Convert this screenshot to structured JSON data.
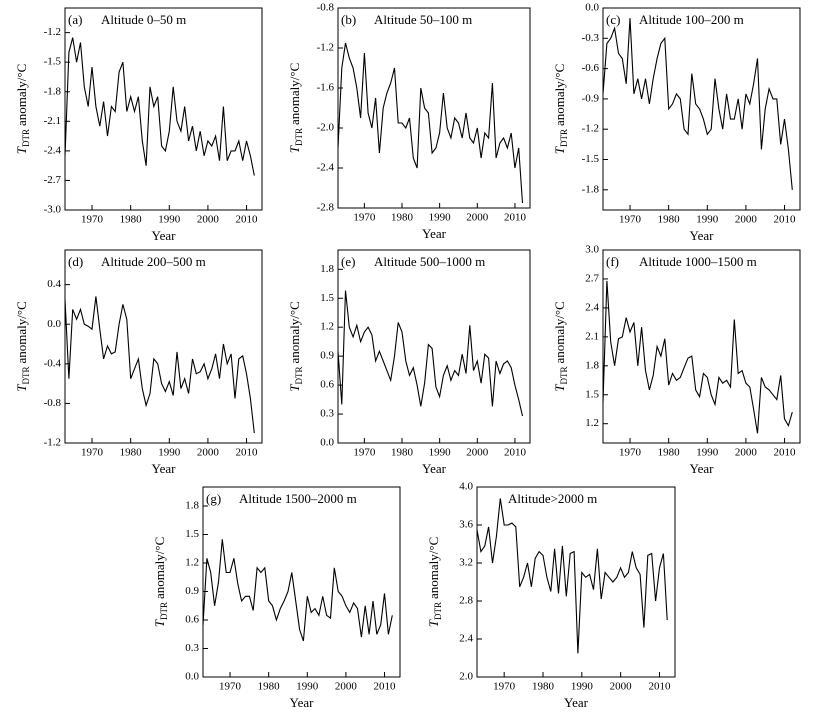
{
  "chart_data": [
    {
      "type": "line",
      "label": "(a)",
      "title": "Altitude 0–50 m",
      "x_label": "Year",
      "y_label": {
        "symbol": "T",
        "subscript": "DTR",
        "unit": "anomaly/°C"
      },
      "color": "#000000",
      "x": [
        1963,
        1964,
        1965,
        1966,
        1967,
        1968,
        1969,
        1970,
        1971,
        1972,
        1973,
        1974,
        1975,
        1976,
        1977,
        1978,
        1979,
        1980,
        1981,
        1982,
        1983,
        1984,
        1985,
        1986,
        1987,
        1988,
        1989,
        1990,
        1991,
        1992,
        1993,
        1994,
        1995,
        1996,
        1997,
        1998,
        1999,
        2000,
        2001,
        2002,
        2003,
        2004,
        2005,
        2006,
        2007,
        2008,
        2009,
        2010,
        2011,
        2012
      ],
      "values": [
        -2.45,
        -1.4,
        -1.25,
        -1.5,
        -1.3,
        -1.75,
        -1.95,
        -1.55,
        -1.95,
        -2.15,
        -1.9,
        -2.25,
        -1.95,
        -2.0,
        -1.6,
        -1.5,
        -2.0,
        -1.85,
        -2.0,
        -1.85,
        -2.3,
        -2.55,
        -1.75,
        -1.95,
        -1.85,
        -2.35,
        -2.4,
        -2.2,
        -1.75,
        -2.1,
        -2.2,
        -1.95,
        -2.3,
        -2.15,
        -2.4,
        -2.2,
        -2.45,
        -2.3,
        -2.35,
        -2.25,
        -2.5,
        -1.95,
        -2.5,
        -2.4,
        -2.4,
        -2.3,
        -2.5,
        -2.3,
        -2.45,
        -2.65
      ],
      "xlim": [
        1963,
        2014
      ],
      "xticks": [
        1970,
        1980,
        1990,
        2000,
        2010
      ],
      "ylim": [
        -3.0,
        -0.95
      ],
      "yticks": [
        -1.2,
        -1.5,
        -1.8,
        -2.1,
        -2.4,
        -2.7,
        {
          "value": -3,
          "label": "-3.0"
        }
      ]
    },
    {
      "type": "line",
      "label": "(b)",
      "title": "Altitude 50–100 m",
      "x_label": "Year",
      "y_label": {
        "symbol": "T",
        "subscript": "DTR",
        "unit": "anomaly/°C"
      },
      "color": "#000000",
      "x": [
        1963,
        1964,
        1965,
        1966,
        1967,
        1968,
        1969,
        1970,
        1971,
        1972,
        1973,
        1974,
        1975,
        1976,
        1977,
        1978,
        1979,
        1980,
        1981,
        1982,
        1983,
        1984,
        1985,
        1986,
        1987,
        1988,
        1989,
        1990,
        1991,
        1992,
        1993,
        1994,
        1995,
        1996,
        1997,
        1998,
        1999,
        2000,
        2001,
        2002,
        2003,
        2004,
        2005,
        2006,
        2007,
        2008,
        2009,
        2010,
        2011,
        2012
      ],
      "values": [
        -2.2,
        -1.4,
        -1.15,
        -1.3,
        -1.4,
        -1.6,
        -1.9,
        -1.25,
        -1.85,
        -2.0,
        -1.7,
        -2.25,
        -1.8,
        -1.65,
        -1.55,
        -1.4,
        -1.95,
        -1.95,
        -2.0,
        -1.9,
        -2.3,
        -2.4,
        -1.6,
        -1.8,
        -1.85,
        -2.25,
        -2.2,
        -2.05,
        -1.65,
        -2.0,
        -2.1,
        -1.9,
        -1.95,
        -2.1,
        -1.85,
        -2.1,
        -2.15,
        -2.0,
        -2.3,
        -2.05,
        -2.1,
        -1.55,
        -2.3,
        -2.15,
        -2.1,
        -2.2,
        -2.05,
        -2.4,
        -2.2,
        -2.75
      ],
      "xlim": [
        1963,
        2014
      ],
      "xticks": [
        1970,
        1980,
        1990,
        2000,
        2010
      ],
      "ylim": [
        -2.8,
        -0.8
      ],
      "yticks": [
        -0.8,
        -1.2,
        -1.6,
        {
          "value": -2,
          "label": "-2.0"
        },
        -2.4,
        -2.8
      ]
    },
    {
      "type": "line",
      "label": "(c)",
      "title": "Altitude 100–200 m",
      "x_label": "Year",
      "y_label": {
        "symbol": "T",
        "subscript": "DTR",
        "unit": "anomaly/°C"
      },
      "color": "#000000",
      "x": [
        1963,
        1964,
        1965,
        1966,
        1967,
        1968,
        1969,
        1970,
        1971,
        1972,
        1973,
        1974,
        1975,
        1976,
        1977,
        1978,
        1979,
        1980,
        1981,
        1982,
        1983,
        1984,
        1985,
        1986,
        1987,
        1988,
        1989,
        1990,
        1991,
        1992,
        1993,
        1994,
        1995,
        1996,
        1997,
        1998,
        1999,
        2000,
        2001,
        2002,
        2003,
        2004,
        2005,
        2006,
        2007,
        2008,
        2009,
        2010,
        2011,
        2012
      ],
      "values": [
        -0.85,
        -0.35,
        -0.3,
        -0.2,
        -0.45,
        -0.5,
        -0.75,
        -0.1,
        -0.85,
        -0.7,
        -0.9,
        -0.7,
        -0.95,
        -0.7,
        -0.5,
        -0.35,
        -0.3,
        -1.0,
        -0.95,
        -0.85,
        -0.9,
        -1.2,
        -1.25,
        -0.65,
        -0.95,
        -1.0,
        -1.1,
        -1.25,
        -1.2,
        -0.7,
        -1.0,
        -1.2,
        -0.85,
        -1.1,
        -1.1,
        -0.9,
        -1.2,
        -0.85,
        -0.95,
        -0.75,
        -0.5,
        -1.4,
        -1.0,
        -0.8,
        -0.9,
        -0.9,
        -1.35,
        -1.1,
        -1.4,
        -1.8
      ],
      "xlim": [
        1963,
        2014
      ],
      "xticks": [
        1970,
        1980,
        1990,
        2000,
        2010
      ],
      "ylim": [
        -2.0,
        0.0
      ],
      "yticks": [
        {
          "value": 0,
          "label": "0.0"
        },
        -0.3,
        -0.6,
        -0.9,
        -1.2,
        -1.5,
        -1.8
      ]
    },
    {
      "type": "line",
      "label": "(d)",
      "title": "Altitude 200–500 m",
      "x_label": "Year",
      "y_label": {
        "symbol": "T",
        "subscript": "DTR",
        "unit": "anomaly/°C"
      },
      "color": "#000000",
      "x": [
        1963,
        1964,
        1965,
        1966,
        1967,
        1968,
        1969,
        1970,
        1971,
        1972,
        1973,
        1974,
        1975,
        1976,
        1977,
        1978,
        1979,
        1980,
        1981,
        1982,
        1983,
        1984,
        1985,
        1986,
        1987,
        1988,
        1989,
        1990,
        1991,
        1992,
        1993,
        1994,
        1995,
        1996,
        1997,
        1998,
        1999,
        2000,
        2001,
        2002,
        2003,
        2004,
        2005,
        2006,
        2007,
        2008,
        2009,
        2010,
        2011,
        2012
      ],
      "values": [
        0.25,
        -0.55,
        0.15,
        0.05,
        0.15,
        0.0,
        -0.02,
        -0.05,
        0.28,
        -0.05,
        -0.35,
        -0.22,
        -0.3,
        -0.28,
        0.0,
        0.2,
        0.05,
        -0.55,
        -0.45,
        -0.35,
        -0.65,
        -0.82,
        -0.7,
        -0.35,
        -0.4,
        -0.6,
        -0.68,
        -0.58,
        -0.72,
        -0.28,
        -0.65,
        -0.55,
        -0.7,
        -0.35,
        -0.5,
        -0.48,
        -0.4,
        -0.55,
        -0.45,
        -0.3,
        -0.55,
        -0.2,
        -0.4,
        -0.3,
        -0.75,
        -0.35,
        -0.32,
        -0.5,
        -0.75,
        -1.1
      ],
      "xlim": [
        1963,
        2014
      ],
      "xticks": [
        1970,
        1980,
        1990,
        2000,
        2010
      ],
      "ylim": [
        -1.2,
        0.75
      ],
      "yticks": [
        0.4,
        {
          "value": 0,
          "label": "0.0"
        },
        -0.4,
        -0.8,
        -1.2
      ]
    },
    {
      "type": "line",
      "label": "(e)",
      "title": "Altitude 500–1000 m",
      "x_label": "Year",
      "y_label": {
        "symbol": "T",
        "subscript": "DTR",
        "unit": "anomaly/°C"
      },
      "color": "#000000",
      "x": [
        1963,
        1964,
        1965,
        1966,
        1967,
        1968,
        1969,
        1970,
        1971,
        1972,
        1973,
        1974,
        1975,
        1976,
        1977,
        1978,
        1979,
        1980,
        1981,
        1982,
        1983,
        1984,
        1985,
        1986,
        1987,
        1988,
        1989,
        1990,
        1991,
        1992,
        1993,
        1994,
        1995,
        1996,
        1997,
        1998,
        1999,
        2000,
        2001,
        2002,
        2003,
        2004,
        2005,
        2006,
        2007,
        2008,
        2009,
        2010,
        2011,
        2012
      ],
      "values": [
        0.95,
        0.4,
        1.58,
        1.2,
        1.1,
        1.22,
        1.05,
        1.15,
        1.2,
        1.12,
        0.85,
        0.95,
        0.85,
        0.75,
        0.65,
        0.9,
        1.25,
        1.15,
        0.85,
        0.7,
        0.78,
        0.6,
        0.38,
        0.62,
        1.02,
        0.98,
        0.58,
        0.48,
        0.7,
        0.8,
        0.65,
        0.75,
        0.7,
        0.92,
        0.72,
        1.22,
        0.75,
        0.85,
        0.62,
        0.92,
        0.88,
        0.38,
        0.85,
        0.72,
        0.82,
        0.85,
        0.78,
        0.6,
        0.45,
        0.28
      ],
      "xlim": [
        1963,
        2014
      ],
      "xticks": [
        1970,
        1980,
        1990,
        2000,
        2010
      ],
      "ylim": [
        0.0,
        2.0
      ],
      "yticks": [
        1.8,
        1.5,
        1.2,
        0.9,
        0.6,
        0.3,
        {
          "value": 0,
          "label": "0.0"
        }
      ]
    },
    {
      "type": "line",
      "label": "(f)",
      "title": "Altitude 1000–1500 m",
      "x_label": "Year",
      "y_label": {
        "symbol": "T",
        "subscript": "DTR",
        "unit": "anomaly/°C"
      },
      "color": "#000000",
      "x": [
        1963,
        1964,
        1965,
        1966,
        1967,
        1968,
        1969,
        1970,
        1971,
        1972,
        1973,
        1974,
        1975,
        1976,
        1977,
        1978,
        1979,
        1980,
        1981,
        1982,
        1983,
        1984,
        1985,
        1986,
        1987,
        1988,
        1989,
        1990,
        1991,
        1992,
        1993,
        1994,
        1995,
        1996,
        1997,
        1998,
        1999,
        2000,
        2001,
        2002,
        2003,
        2004,
        2005,
        2006,
        2007,
        2008,
        2009,
        2010,
        2011,
        2012
      ],
      "values": [
        1.42,
        2.68,
        2.05,
        1.8,
        2.08,
        2.1,
        2.3,
        2.15,
        2.25,
        1.8,
        2.2,
        1.75,
        1.55,
        1.7,
        2.0,
        1.9,
        2.08,
        1.6,
        1.72,
        1.65,
        1.68,
        1.78,
        1.88,
        1.9,
        1.55,
        1.48,
        1.72,
        1.68,
        1.5,
        1.4,
        1.68,
        1.62,
        1.65,
        1.58,
        2.28,
        1.72,
        1.75,
        1.62,
        1.58,
        1.35,
        1.1,
        1.68,
        1.58,
        1.55,
        1.5,
        1.45,
        1.7,
        1.25,
        1.18,
        1.32
      ],
      "xlim": [
        1963,
        2014
      ],
      "xticks": [
        1970,
        1980,
        1990,
        2000,
        2010
      ],
      "ylim": [
        1.0,
        3.0
      ],
      "yticks": [
        {
          "value": 3,
          "label": "3.0"
        },
        2.7,
        2.4,
        2.1,
        1.8,
        1.5,
        1.2
      ]
    },
    {
      "type": "line",
      "label": "(g)",
      "title": "Altitude 1500–2000 m",
      "x_label": "Year",
      "y_label": {
        "symbol": "T",
        "subscript": "DTR",
        "unit": "anomaly/°C"
      },
      "color": "#000000",
      "x": [
        1963,
        1964,
        1965,
        1966,
        1967,
        1968,
        1969,
        1970,
        1971,
        1972,
        1973,
        1974,
        1975,
        1976,
        1977,
        1978,
        1979,
        1980,
        1981,
        1982,
        1983,
        1984,
        1985,
        1986,
        1987,
        1988,
        1989,
        1990,
        1991,
        1992,
        1993,
        1994,
        1995,
        1996,
        1997,
        1998,
        1999,
        2000,
        2001,
        2002,
        2003,
        2004,
        2005,
        2006,
        2007,
        2008,
        2009,
        2010,
        2011,
        2012
      ],
      "values": [
        0.55,
        1.25,
        1.1,
        0.75,
        1.0,
        1.45,
        1.1,
        1.1,
        1.25,
        0.98,
        0.8,
        0.85,
        0.85,
        0.7,
        1.15,
        1.1,
        1.15,
        0.8,
        0.75,
        0.6,
        0.72,
        0.8,
        0.9,
        1.1,
        0.8,
        0.5,
        0.38,
        0.85,
        0.68,
        0.72,
        0.65,
        0.85,
        0.65,
        0.62,
        1.15,
        0.9,
        0.85,
        0.75,
        0.68,
        0.78,
        0.72,
        0.42,
        0.75,
        0.45,
        0.8,
        0.45,
        0.55,
        0.88,
        0.45,
        0.65
      ],
      "xlim": [
        1963,
        2014
      ],
      "xticks": [
        1970,
        1980,
        1990,
        2000,
        2010
      ],
      "ylim": [
        0.0,
        2.0
      ],
      "yticks": [
        1.8,
        1.5,
        1.2,
        0.9,
        0.6,
        0.3,
        {
          "value": 0,
          "label": "0.0"
        }
      ]
    },
    {
      "type": "line",
      "title": "Altitude>2000 m",
      "x_label": "Year",
      "y_label": {
        "symbol": "T",
        "subscript": "DTR",
        "unit": "anomaly/°C"
      },
      "color": "#000000",
      "x": [
        1963,
        1964,
        1965,
        1966,
        1967,
        1968,
        1969,
        1970,
        1971,
        1972,
        1973,
        1974,
        1975,
        1976,
        1977,
        1978,
        1979,
        1980,
        1981,
        1982,
        1983,
        1984,
        1985,
        1986,
        1987,
        1988,
        1989,
        1990,
        1991,
        1992,
        1993,
        1994,
        1995,
        1996,
        1997,
        1998,
        1999,
        2000,
        2001,
        2002,
        2003,
        2004,
        2005,
        2006,
        2007,
        2008,
        2009,
        2010,
        2011,
        2012
      ],
      "values": [
        3.55,
        3.32,
        3.38,
        3.58,
        3.2,
        3.48,
        3.88,
        3.6,
        3.6,
        3.62,
        3.58,
        2.95,
        3.05,
        3.2,
        2.95,
        3.25,
        3.32,
        3.28,
        3.05,
        2.9,
        3.35,
        2.88,
        3.38,
        2.85,
        3.3,
        3.32,
        2.25,
        3.1,
        3.05,
        3.08,
        2.92,
        3.35,
        2.82,
        3.1,
        3.05,
        3.0,
        3.05,
        3.15,
        3.05,
        3.1,
        3.32,
        3.15,
        3.08,
        2.52,
        3.28,
        3.3,
        2.8,
        3.15,
        3.3,
        2.6
      ],
      "xlim": [
        1963,
        2014
      ],
      "xticks": [
        1970,
        1980,
        1990,
        2000,
        2010
      ],
      "ylim": [
        2.0,
        4.0
      ],
      "yticks": [
        {
          "value": 4,
          "label": "4.0"
        },
        3.6,
        3.2,
        2.8,
        2.4,
        {
          "value": 2,
          "label": "2.0"
        }
      ]
    }
  ]
}
